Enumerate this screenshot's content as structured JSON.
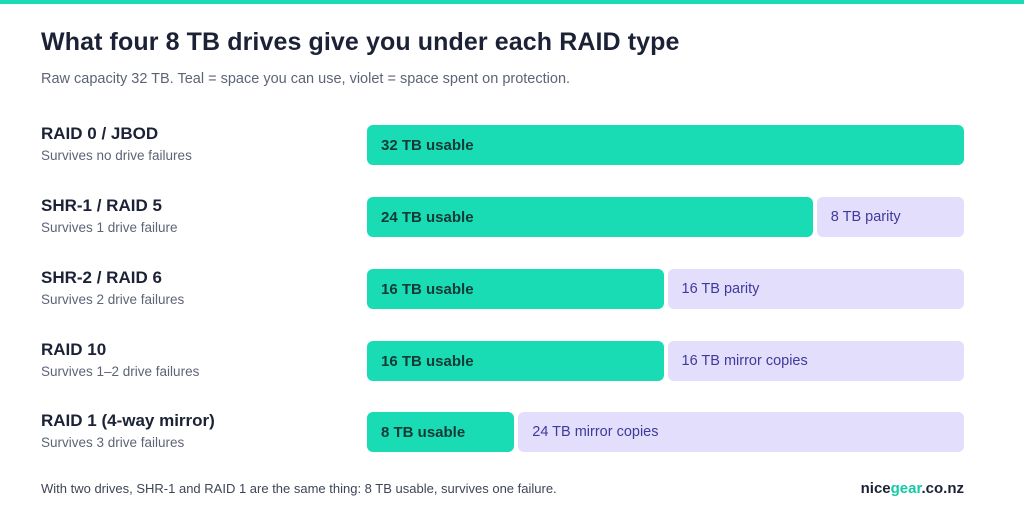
{
  "title": "What four 8 TB drives give you under each RAID type",
  "subtitle": "Raw capacity 32 TB. Teal = space you can use, violet = space spent on protection.",
  "footnote": "With two drives, SHR-1 and RAID 1 are the same thing: 8 TB usable, survives one failure.",
  "brand": {
    "part1": "nice",
    "part2": "gear",
    "part3": ".co.nz"
  },
  "colors": {
    "usable": "#19dbb4",
    "protection": "#e2defc",
    "protection_text": "#3f3a9c",
    "title": "#1c2236"
  },
  "chart_data": {
    "type": "bar",
    "orientation": "horizontal",
    "stacked": true,
    "total_tb": 32,
    "categories": [
      "RAID 0 / JBOD",
      "SHR-1 / RAID 5",
      "SHR-2 / RAID 6",
      "RAID 10",
      "RAID 1 (4-way mirror)"
    ],
    "subtitles": [
      "Survives no drive failures",
      "Survives 1 drive failure",
      "Survives 2 drive failures",
      "Survives 1–2 drive failures",
      "Survives 3 drive failures"
    ],
    "series": [
      {
        "values": [
          32,
          24,
          16,
          16,
          8
        ],
        "labels": [
          "32 TB usable",
          "24 TB usable",
          "16 TB usable",
          "16 TB usable",
          "8 TB usable"
        ]
      },
      {
        "values": [
          0,
          8,
          16,
          16,
          24
        ],
        "labels": [
          "",
          "8 TB parity",
          "16 TB parity",
          "16 TB mirror copies",
          "24 TB mirror copies"
        ]
      }
    ]
  }
}
